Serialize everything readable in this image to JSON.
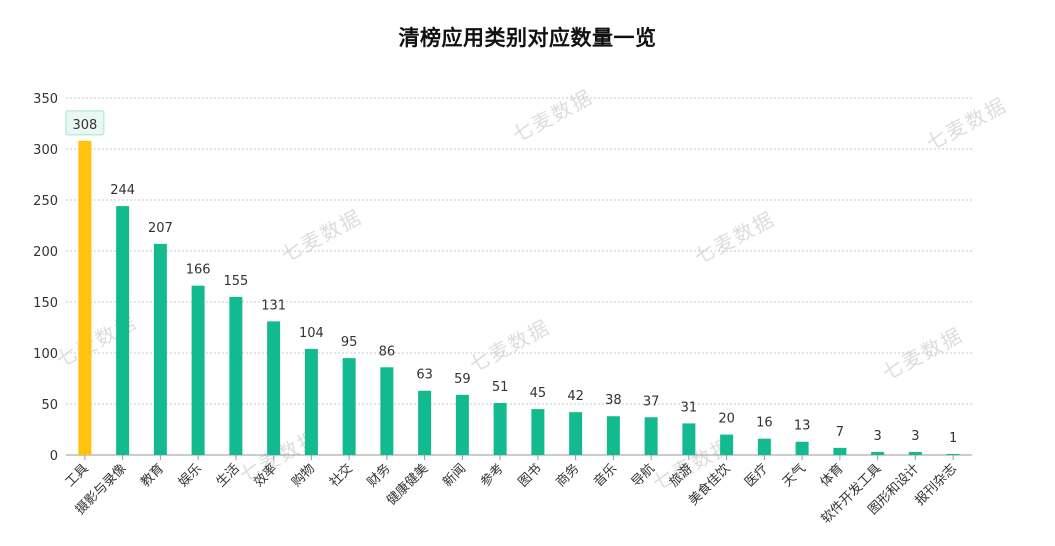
{
  "watermark": "七麦数据",
  "colors": {
    "highlight": "#FFC20E",
    "bar": "#13BA8F",
    "axis": "#999999",
    "grid": "#C8C8C8",
    "label": "#333333"
  },
  "chart_data": {
    "type": "bar",
    "title": "清榜应用类别对应数量一览",
    "xlabel": "",
    "ylabel": "",
    "ylim": [
      0,
      350
    ],
    "yticks": [
      0,
      50,
      100,
      150,
      200,
      250,
      300,
      350
    ],
    "grid": true,
    "highlighted_category": "工具",
    "categories": [
      "工具",
      "摄影与录像",
      "教育",
      "娱乐",
      "生活",
      "效率",
      "购物",
      "社交",
      "财务",
      "健康健美",
      "新闻",
      "参考",
      "图书",
      "商务",
      "音乐",
      "导航",
      "旅游",
      "美食佳饮",
      "医疗",
      "天气",
      "体育",
      "软件开发工具",
      "图形和设计",
      "报刊杂志"
    ],
    "values": [
      308,
      244,
      207,
      166,
      155,
      131,
      104,
      95,
      86,
      63,
      59,
      51,
      45,
      42,
      38,
      37,
      31,
      20,
      16,
      13,
      7,
      3,
      3,
      1
    ]
  }
}
